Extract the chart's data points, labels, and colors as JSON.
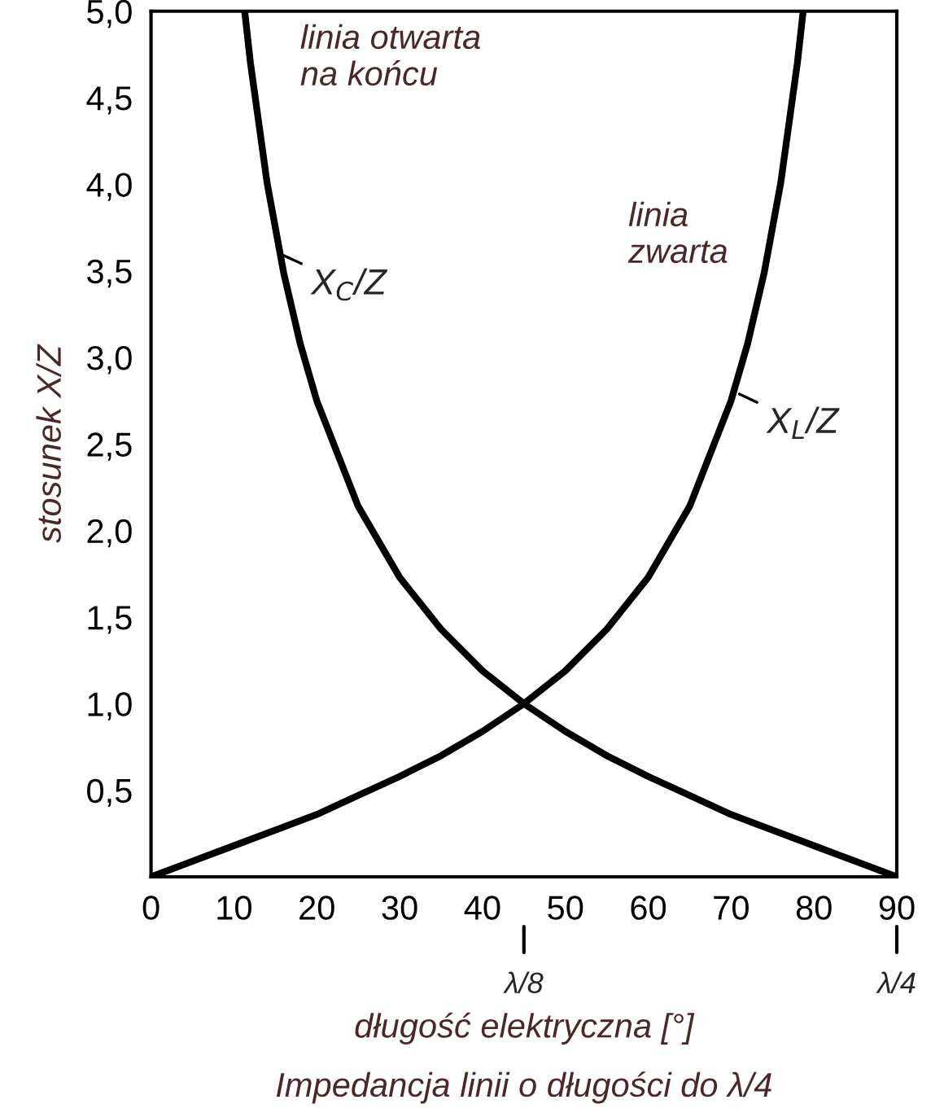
{
  "chart_data": {
    "type": "line",
    "title": "Impedancja linii o długości do λ/4",
    "xlabel": "długość elektryczna [°]",
    "ylabel": "stosunek X/Z",
    "xlim": [
      0,
      90
    ],
    "ylim": [
      0,
      5
    ],
    "xticks": [
      0,
      10,
      20,
      30,
      40,
      50,
      60,
      70,
      80,
      90
    ],
    "yticks": [
      {
        "value": 0.5,
        "label": "0,5"
      },
      {
        "value": 1.0,
        "label": "1,0"
      },
      {
        "value": 1.5,
        "label": "1,5"
      },
      {
        "value": 2.0,
        "label": "2,0"
      },
      {
        "value": 2.5,
        "label": "2,5"
      },
      {
        "value": 3.0,
        "label": "3,0"
      },
      {
        "value": 3.5,
        "label": "3,5"
      },
      {
        "value": 4.0,
        "label": "4,0"
      },
      {
        "value": 4.5,
        "label": "4,5"
      },
      {
        "value": 5.0,
        "label": "5,0"
      }
    ],
    "grid": false,
    "legend": false,
    "marker": "none",
    "line_style": "solid",
    "series": [
      {
        "color": "#000000",
        "x": [
          11.3,
          12,
          14,
          16,
          18,
          20,
          25,
          30,
          35,
          40,
          45,
          50,
          55,
          60,
          65,
          70,
          75,
          80,
          85,
          90
        ],
        "values": [
          5.0,
          4.7,
          4.01,
          3.49,
          3.08,
          2.75,
          2.14,
          1.73,
          1.43,
          1.19,
          1.0,
          0.84,
          0.7,
          0.58,
          0.47,
          0.36,
          0.27,
          0.18,
          0.09,
          0
        ]
      },
      {
        "color": "#000000",
        "x": [
          0,
          5,
          10,
          15,
          20,
          25,
          30,
          35,
          40,
          45,
          50,
          55,
          60,
          65,
          70,
          72,
          74,
          76,
          78,
          78.7
        ],
        "values": [
          0,
          0.09,
          0.18,
          0.27,
          0.36,
          0.47,
          0.58,
          0.7,
          0.84,
          1.0,
          1.19,
          1.43,
          1.73,
          2.14,
          2.75,
          3.08,
          3.49,
          4.01,
          4.7,
          5.0
        ]
      }
    ],
    "annotations": [
      "linia otwarta\nna końcu",
      "linia\nzwarta",
      {
        "text": "X$_{C}$/Z",
        "x": 15.5,
        "y": 3.6
      },
      {
        "text": "X$_{L}$/Z",
        "x": 70.5,
        "y": 2.8
      },
      "λ/8",
      "λ/4"
    ]
  }
}
